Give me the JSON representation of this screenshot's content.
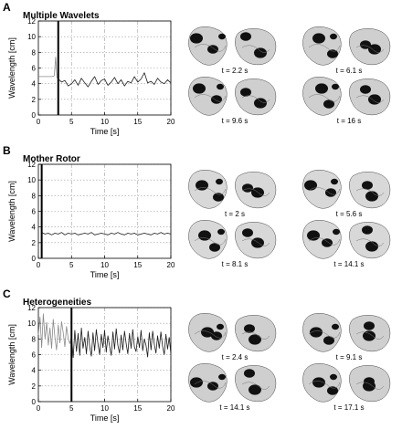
{
  "panels": [
    {
      "letter": "A",
      "title": "Multiple Wavelets",
      "snapshots": [
        "t = 2.2 s",
        "t = 6.1 s",
        "t = 9.6 s",
        "t = 16 s"
      ]
    },
    {
      "letter": "B",
      "title": "Mother Rotor",
      "snapshots": [
        "t = 2 s",
        "t = 5.6 s",
        "t = 8.1 s",
        "t = 14.1 s"
      ]
    },
    {
      "letter": "C",
      "title": "Heterogeneities",
      "snapshots": [
        "t = 2.4 s",
        "t = 9.1 s",
        "t = 14.1 s",
        "t = 17.1 s"
      ]
    }
  ],
  "chart_data": [
    {
      "type": "line",
      "title": "Multiple Wavelets",
      "xlabel": "Time [s]",
      "ylabel": "Wavelength [cm]",
      "xlim": [
        0,
        20
      ],
      "ylim": [
        0,
        12
      ],
      "xticks": [
        0,
        5,
        10,
        15,
        20
      ],
      "yticks": [
        0,
        2,
        4,
        6,
        8,
        10,
        12
      ],
      "grid": true,
      "marker_line_x": 3.0,
      "snapshot_times_s": [
        2.2,
        6.1,
        9.6,
        16
      ],
      "series": [
        {
          "x": [
            0,
            0.5,
            1,
            1.5,
            2,
            2.4,
            2.6,
            2.8,
            3.0
          ],
          "y": [
            4.9,
            4.9,
            4.9,
            4.9,
            4.9,
            5.0,
            7.4,
            4.8,
            4.6
          ],
          "color": "#8a8a8a"
        },
        {
          "x": [
            3.0,
            3.5,
            4,
            4.5,
            5,
            5.5,
            6,
            6.5,
            7,
            7.5,
            8,
            8.5,
            9,
            9.5,
            10,
            10.5,
            11,
            11.5,
            12,
            12.5,
            13,
            13.5,
            14,
            14.5,
            15,
            15.5,
            16,
            16.5,
            17,
            17.5,
            18,
            18.5,
            19,
            19.5,
            20
          ],
          "y": [
            4.6,
            4.2,
            4.4,
            3.7,
            4.0,
            4.5,
            3.8,
            4.7,
            4.1,
            3.6,
            4.3,
            4.9,
            3.9,
            4.4,
            4.6,
            3.8,
            4.2,
            4.8,
            4.0,
            4.5,
            3.7,
            4.3,
            4.1,
            4.9,
            4.2,
            4.6,
            5.4,
            4.1,
            4.3,
            3.9,
            4.7,
            4.2,
            4.0,
            4.5,
            4.1
          ],
          "color": "#1a1a1a"
        }
      ]
    },
    {
      "type": "line",
      "title": "Mother Rotor",
      "xlabel": "Time [s]",
      "ylabel": "Wavelength [cm]",
      "xlim": [
        0,
        20
      ],
      "ylim": [
        0,
        12
      ],
      "xticks": [
        0,
        5,
        10,
        15,
        20
      ],
      "yticks": [
        0,
        2,
        4,
        6,
        8,
        10,
        12
      ],
      "grid": true,
      "marker_line_x": 0.5,
      "snapshot_times_s": [
        2,
        5.6,
        8.1,
        14.1
      ],
      "series": [
        {
          "x": [
            0.5,
            1,
            1.5,
            2,
            2.5,
            3,
            3.5,
            4,
            4.5,
            5,
            5.5,
            6,
            6.5,
            7,
            7.5,
            8,
            8.5,
            9,
            9.5,
            10,
            10.5,
            11,
            11.5,
            12,
            12.5,
            13,
            13.5,
            14,
            14.5,
            15,
            15.5,
            16,
            16.5,
            17,
            17.5,
            18,
            18.5,
            19,
            19.5,
            20
          ],
          "y": [
            3.3,
            3.1,
            3.2,
            3.0,
            3.2,
            3.1,
            3.3,
            3.0,
            3.2,
            3.1,
            3.2,
            3.0,
            3.1,
            3.2,
            3.1,
            3.3,
            3.0,
            3.1,
            3.2,
            3.1,
            3.0,
            3.2,
            3.1,
            3.3,
            3.1,
            3.0,
            3.2,
            3.1,
            3.2,
            3.0,
            3.1,
            3.2,
            3.1,
            3.0,
            3.2,
            3.1,
            3.3,
            3.1,
            3.2,
            3.1
          ],
          "color": "#1a1a1a"
        }
      ]
    },
    {
      "type": "line",
      "title": "Heterogeneities",
      "xlabel": "Time [s]",
      "ylabel": "Wavelength [cm]",
      "xlim": [
        0,
        20
      ],
      "ylim": [
        0,
        12
      ],
      "xticks": [
        0,
        5,
        10,
        15,
        20
      ],
      "yticks": [
        0,
        2,
        4,
        6,
        8,
        10,
        12
      ],
      "grid": true,
      "marker_line_x": 5.0,
      "snapshot_times_s": [
        2.4,
        9.1,
        14.1,
        17.1
      ],
      "series": [
        {
          "x": [
            0,
            0.25,
            0.5,
            0.75,
            1,
            1.25,
            1.5,
            1.75,
            2,
            2.25,
            2.5,
            2.75,
            3,
            3.25,
            3.5,
            3.75,
            4,
            4.25,
            4.5,
            4.75,
            5
          ],
          "y": [
            8.5,
            10.8,
            6.9,
            11.2,
            8.0,
            10.1,
            7.2,
            9.4,
            6.8,
            10.5,
            8.2,
            6.6,
            9.8,
            7.5,
            10.2,
            8.8,
            7.0,
            9.6,
            8.1,
            7.4,
            8.3
          ],
          "color": "#8a8a8a"
        },
        {
          "x": [
            5,
            5.25,
            5.5,
            5.75,
            6,
            6.25,
            6.5,
            6.75,
            7,
            7.25,
            7.5,
            7.75,
            8,
            8.25,
            8.5,
            8.75,
            9,
            9.25,
            9.5,
            9.75,
            10,
            10.25,
            10.5,
            10.75,
            11,
            11.25,
            11.5,
            11.75,
            12,
            12.25,
            12.5,
            12.75,
            13,
            13.25,
            13.5,
            13.75,
            14,
            14.25,
            14.5,
            14.75,
            15,
            15.25,
            15.5,
            15.75,
            16,
            16.25,
            16.5,
            16.75,
            17,
            17.25,
            17.5,
            17.75,
            18,
            18.25,
            18.5,
            18.75,
            19,
            19.25,
            19.5,
            19.75,
            20
          ],
          "y": [
            8.3,
            5.6,
            9.1,
            6.4,
            8.7,
            5.9,
            9.4,
            6.8,
            8.2,
            6.1,
            9.0,
            7.0,
            5.8,
            8.8,
            6.5,
            9.2,
            7.3,
            6.0,
            8.6,
            6.9,
            9.1,
            6.3,
            8.4,
            7.1,
            5.9,
            8.9,
            6.7,
            9.3,
            7.2,
            6.2,
            8.5,
            6.6,
            9.0,
            7.4,
            6.1,
            8.7,
            6.8,
            9.2,
            7.0,
            6.4,
            8.3,
            6.9,
            9.1,
            6.5,
            8.0,
            7.2,
            5.7,
            8.8,
            6.6,
            9.0,
            7.3,
            6.2,
            8.4,
            6.8,
            8.9,
            7.1,
            6.0,
            8.6,
            6.7,
            8.2,
            6.1
          ],
          "color": "#1a1a1a"
        }
      ]
    }
  ]
}
